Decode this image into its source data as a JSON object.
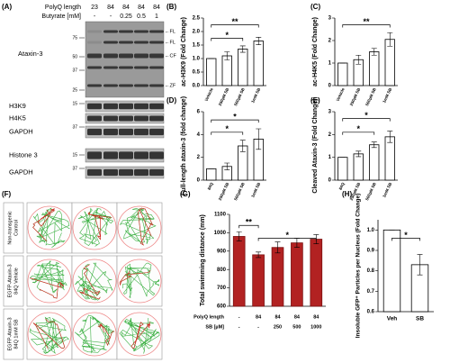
{
  "panel_labels": [
    "(A)",
    "(B)",
    "(C)",
    "(D)",
    "(E)",
    "(F)",
    "(G)",
    "(H)"
  ],
  "blot": {
    "polyq_label": "PolyQ length",
    "polyq": [
      "23",
      "84",
      "84",
      "84",
      "84"
    ],
    "butyrate_label": "Butyrate [mM]",
    "butyrate": [
      "-",
      "-",
      "0.25",
      "0.5",
      "1"
    ],
    "rows": [
      {
        "name": "Ataxin-3",
        "markers": [
          "75",
          "50",
          "37",
          "25"
        ]
      },
      {
        "name": "H3K9",
        "markers": [
          "15"
        ]
      },
      {
        "name": "H4K5",
        "markers": []
      },
      {
        "name": "GAPDH",
        "markers": [
          "37"
        ]
      },
      {
        "name": "Histone 3",
        "markers": [
          "15"
        ]
      },
      {
        "name": "GAPDH",
        "markers": [
          "37"
        ]
      }
    ],
    "arrows": [
      "←FL",
      "←FL",
      "←CF",
      "←ZF"
    ]
  },
  "tracks": {
    "rows": [
      [
        "Non-transgenic",
        "Control"
      ],
      [
        "EGFP-Ataxin-3",
        "84Q Vehicle"
      ],
      [
        "EGFP-Ataxin-3",
        "84Q 1mM SB"
      ]
    ]
  },
  "chart_data": [
    {
      "type": "bar",
      "ylabel": "ac-H3K9 (Fold Change)",
      "categories": [
        "Vehicle",
        "250µM SB",
        "500µM SB",
        "1mM SB"
      ],
      "values": [
        1.0,
        1.1,
        1.35,
        1.65
      ],
      "errors": [
        0.0,
        0.15,
        0.12,
        0.14
      ],
      "color": "#ffffff",
      "edgecolor": "#000000",
      "ylim": [
        0,
        2.5
      ],
      "yticks": [
        {
          "value": 0,
          "label": "0.0"
        },
        0.5,
        {
          "value": 1,
          "label": "1.0"
        },
        1.5,
        {
          "value": 2,
          "label": "2.0"
        },
        2.5
      ],
      "annotations": [
        "*",
        "**"
      ]
    },
    {
      "type": "bar",
      "ylabel": "ac-H4K5 (Fold Change)",
      "categories": [
        "Vehicle",
        "250µM SB",
        "500µM SB",
        "1mM SB"
      ],
      "values": [
        1.0,
        1.15,
        1.5,
        2.05
      ],
      "errors": [
        0.0,
        0.2,
        0.15,
        0.3
      ],
      "color": "#ffffff",
      "edgecolor": "#000000",
      "ylim": [
        0,
        3
      ],
      "yticks": [
        0,
        1,
        2,
        3
      ],
      "annotations": [
        "**"
      ]
    },
    {
      "type": "bar",
      "ylabel": "Full-length ataxin-3 (fold change)",
      "categories": [
        "84Q",
        "250µM SB",
        "500µM SB",
        "1mM SB"
      ],
      "values": [
        1.0,
        1.2,
        3.0,
        3.6
      ],
      "errors": [
        0.0,
        0.3,
        0.5,
        0.9
      ],
      "color": "#ffffff",
      "edgecolor": "#000000",
      "ylim": [
        0,
        6
      ],
      "yticks": [
        0,
        2,
        4,
        6
      ],
      "annotations": [
        "*",
        "*"
      ]
    },
    {
      "type": "bar",
      "ylabel": "Cleaved Ataxin-3 (Fold Change)",
      "categories": [
        "84Q",
        "250µM SB",
        "500µM SB",
        "1mM SB"
      ],
      "values": [
        1.0,
        1.15,
        1.55,
        1.9
      ],
      "errors": [
        0.0,
        0.12,
        0.12,
        0.25
      ],
      "color": "#ffffff",
      "edgecolor": "#000000",
      "ylim": [
        0,
        3
      ],
      "yticks": [
        0,
        1,
        2,
        3
      ],
      "annotations": [
        "*",
        "*"
      ]
    },
    {
      "type": "bar",
      "ylabel": "Total swimming distance (mm)",
      "category_rows": [
        {
          "label": "PolyQ length",
          "values": [
            "-",
            "84",
            "84",
            "84",
            "84"
          ]
        },
        {
          "label": "SB [µM]",
          "values": [
            "-",
            "-",
            "250",
            "500",
            "1000"
          ]
        }
      ],
      "values": [
        980,
        880,
        920,
        945,
        965
      ],
      "errors": [
        25,
        15,
        30,
        25,
        25
      ],
      "color": "#b22222",
      "edgecolor": "#7a1010",
      "ylim": [
        600,
        1100
      ],
      "yticks": [
        600,
        700,
        800,
        900,
        1000,
        1100
      ],
      "annotations": [
        "**",
        "*"
      ]
    },
    {
      "type": "bar",
      "ylabel": "Insoluble GFP⁺ Particles per Nucleus (Fold Change)",
      "categories": [
        "Veh",
        "SB"
      ],
      "values": [
        1.0,
        0.83
      ],
      "errors": [
        0.0,
        0.05
      ],
      "color": "#ffffff",
      "edgecolor": "#000000",
      "ylim": [
        0.6,
        1.05
      ],
      "yticks": [
        0.6,
        0.7,
        0.8,
        0.9,
        {
          "value": 1,
          "label": "1.0"
        }
      ],
      "annotations": [
        "*"
      ]
    }
  ]
}
